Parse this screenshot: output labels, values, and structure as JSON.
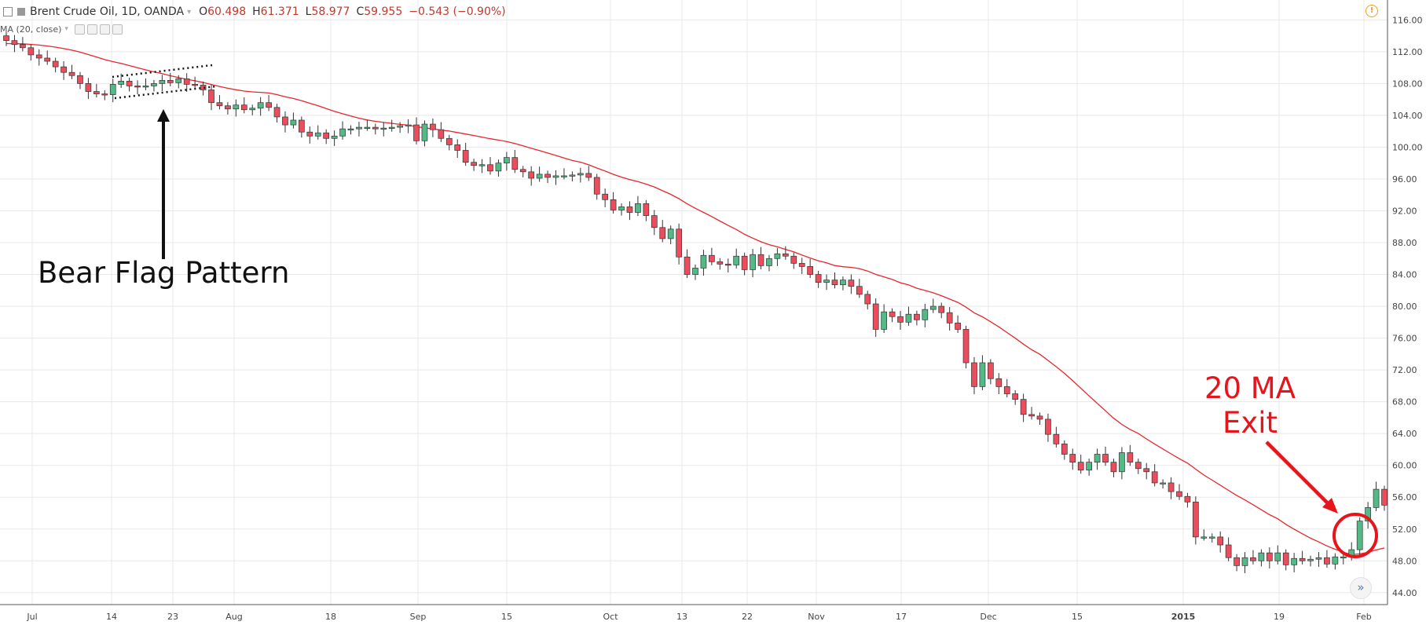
{
  "header": {
    "symbol_title": "Brent Crude Oil, 1D, OANDA",
    "open_label": "O",
    "open_value": "60.498",
    "high_label": "H",
    "high_value": "61.371",
    "low_label": "L",
    "low_value": "58.977",
    "close_label": "C",
    "close_value": "59.955",
    "change_value": "−0.543 (−0.90%)"
  },
  "indicator": {
    "label": "MA (20, close)"
  },
  "annotations": {
    "bear_flag": "Bear Flag Pattern",
    "ma_exit_line1": "20 MA",
    "ma_exit_line2": "Exit"
  },
  "colors": {
    "bull": "#53b987",
    "bear": "#eb4d5c",
    "ma_line": "#e8262c",
    "annotation_red": "#e8141b",
    "grid": "#e8e8e8",
    "axis_text": "#444444"
  },
  "chart_data": {
    "type": "candlestick",
    "title": "Brent Crude Oil, 1D, OANDA",
    "y_ticks": [
      "116.00",
      "112.00",
      "108.00",
      "104.00",
      "100.00",
      "96.00",
      "92.00",
      "88.00",
      "84.00",
      "80.00",
      "76.00",
      "72.00",
      "68.00",
      "64.00",
      "60.00",
      "56.00",
      "52.00",
      "48.00",
      "44.00"
    ],
    "y_range": [
      42.5,
      118.5
    ],
    "x_ticks": [
      "Jul",
      "14",
      "23",
      "Aug",
      "18",
      "Sep",
      "15",
      "Oct",
      "13",
      "22",
      "Nov",
      "17",
      "Dec",
      "15",
      "2015",
      "19",
      "Feb"
    ],
    "closes": [
      113.4,
      112.9,
      112.5,
      111.6,
      111.2,
      110.8,
      110.1,
      109.4,
      109.0,
      108.0,
      107.0,
      106.7,
      106.6,
      107.9,
      108.3,
      107.7,
      107.6,
      107.7,
      108.0,
      108.4,
      108.1,
      108.6,
      107.9,
      107.8,
      107.2,
      105.6,
      105.2,
      104.8,
      105.3,
      104.7,
      104.9,
      105.6,
      105.0,
      103.8,
      102.8,
      103.4,
      101.9,
      101.4,
      101.8,
      101.1,
      101.4,
      102.3,
      102.3,
      102.5,
      102.5,
      102.3,
      102.4,
      102.5,
      102.7,
      102.8,
      100.8,
      102.9,
      102.2,
      101.1,
      100.3,
      99.6,
      98.1,
      97.7,
      97.8,
      97.0,
      98.0,
      98.7,
      97.2,
      96.9,
      96.1,
      96.6,
      96.2,
      96.4,
      96.4,
      96.5,
      96.7,
      96.2,
      94.1,
      93.4,
      92.1,
      92.5,
      91.8,
      92.9,
      91.4,
      89.9,
      88.5,
      89.7,
      86.2,
      84.0,
      84.8,
      86.4,
      85.6,
      85.3,
      85.2,
      86.3,
      84.6,
      86.5,
      85.1,
      86.0,
      86.6,
      86.3,
      85.4,
      85.0,
      84.0,
      83.0,
      83.3,
      82.7,
      83.3,
      82.5,
      81.5,
      80.3,
      77.1,
      79.3,
      78.7,
      78.0,
      79.0,
      78.3,
      79.6,
      80.0,
      79.2,
      77.9,
      77.1,
      72.9,
      69.9,
      72.9,
      70.9,
      69.9,
      69.0,
      68.3,
      66.4,
      66.2,
      65.8,
      63.9,
      62.7,
      61.4,
      60.4,
      59.4,
      60.4,
      61.4,
      60.4,
      59.2,
      61.6,
      60.4,
      59.6,
      59.2,
      57.8,
      57.8,
      56.7,
      56.1,
      55.4,
      51.0,
      51.0,
      51.0,
      50.0,
      48.4,
      47.4,
      48.4,
      48.0,
      49.0,
      48.0,
      49.0,
      47.5,
      48.3,
      48.0,
      48.2,
      48.4,
      47.6,
      48.5,
      48.5,
      49.4,
      53.0,
      54.7,
      57.0,
      55.0
    ]
  }
}
